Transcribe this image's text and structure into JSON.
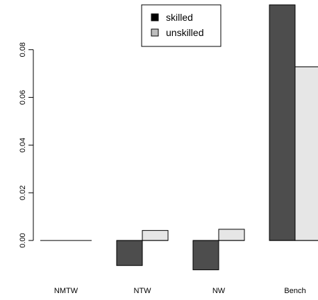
{
  "chart_data": {
    "type": "bar",
    "categories": [
      "NMTW",
      "NTW",
      "NW",
      "Bench"
    ],
    "series": [
      {
        "name": "skilled",
        "values": [
          0.0,
          -0.0105,
          -0.0123,
          0.0988
        ]
      },
      {
        "name": "unskilled",
        "values": [
          0.0,
          0.0042,
          0.0047,
          0.0728
        ]
      }
    ],
    "y_ticks": [
      0.0,
      0.02,
      0.04,
      0.06,
      0.08
    ],
    "y_tick_labels": [
      "0.00",
      "0.02",
      "0.04",
      "0.06",
      "0.08"
    ],
    "ylim": [
      -0.0145,
      0.0988
    ],
    "grid": false,
    "legend_position": "top",
    "colors": {
      "skilled": "#4d4d4d",
      "unskilled": "#e6e6e6",
      "legend_skilled": "#000000",
      "legend_unskilled": "#bebebe"
    }
  }
}
